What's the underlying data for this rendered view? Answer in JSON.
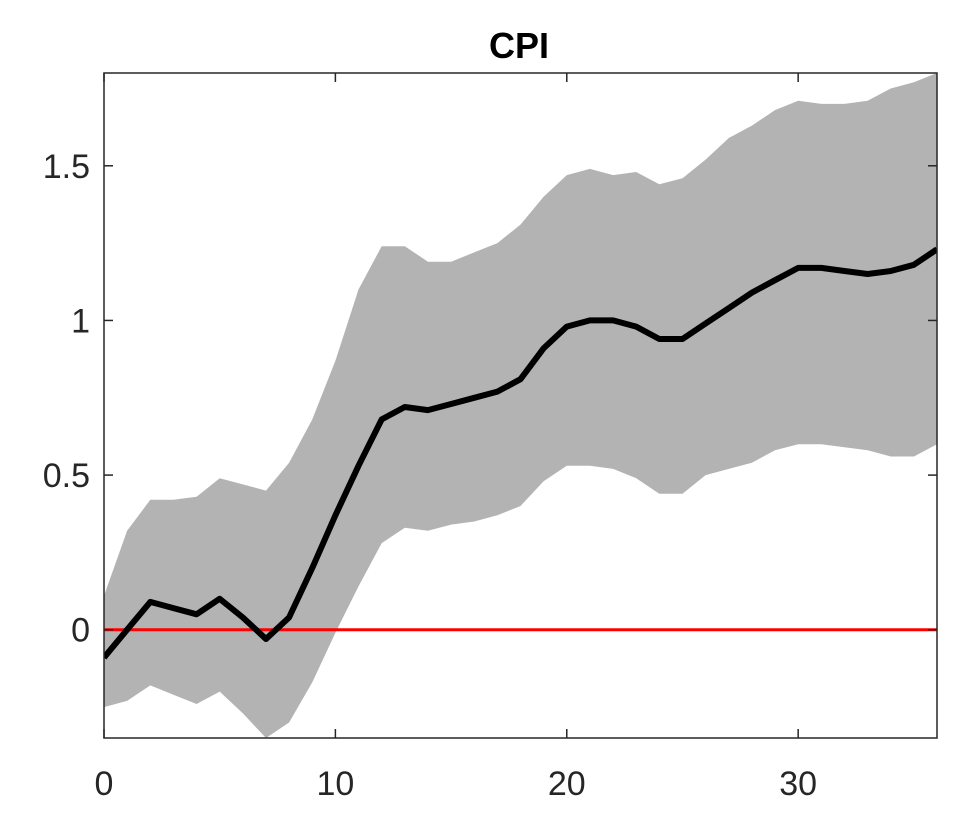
{
  "chart_data": {
    "type": "line",
    "title": "CPI",
    "xlabel": "",
    "ylabel": "",
    "xlim": [
      0,
      36
    ],
    "ylim": [
      -0.35,
      1.8
    ],
    "xticks": [
      0,
      10,
      20,
      30
    ],
    "xtick_labels": [
      "0",
      "10",
      "20",
      "30"
    ],
    "yticks": [
      0,
      0.5,
      1,
      1.5
    ],
    "ytick_labels": [
      "0",
      "0.5",
      "1",
      "1.5"
    ],
    "grid": false,
    "legend": "none",
    "x": [
      0,
      1,
      2,
      3,
      4,
      5,
      6,
      7,
      8,
      9,
      10,
      11,
      12,
      13,
      14,
      15,
      16,
      17,
      18,
      19,
      20,
      21,
      22,
      23,
      24,
      25,
      26,
      27,
      28,
      29,
      30,
      31,
      32,
      33,
      34,
      35,
      36
    ],
    "series": [
      {
        "role": "median",
        "color": "#000000",
        "values": [
          -0.09,
          0.0,
          0.09,
          0.07,
          0.05,
          0.1,
          0.04,
          -0.03,
          0.04,
          0.2,
          0.37,
          0.53,
          0.68,
          0.72,
          0.71,
          0.73,
          0.75,
          0.77,
          0.81,
          0.91,
          0.98,
          1.0,
          1.0,
          0.98,
          0.94,
          0.94,
          0.99,
          1.04,
          1.09,
          1.13,
          1.17,
          1.17,
          1.16,
          1.15,
          1.16,
          1.18,
          1.23
        ]
      },
      {
        "role": "band-upper",
        "color": "#b3b3b3",
        "values": [
          0.11,
          0.32,
          0.42,
          0.42,
          0.43,
          0.49,
          0.47,
          0.45,
          0.54,
          0.68,
          0.87,
          1.1,
          1.24,
          1.24,
          1.19,
          1.19,
          1.22,
          1.25,
          1.31,
          1.4,
          1.47,
          1.49,
          1.47,
          1.48,
          1.44,
          1.46,
          1.52,
          1.59,
          1.63,
          1.68,
          1.71,
          1.7,
          1.7,
          1.71,
          1.75,
          1.77,
          1.8
        ]
      },
      {
        "role": "band-lower",
        "color": "#b3b3b3",
        "values": [
          -0.25,
          -0.23,
          -0.18,
          -0.21,
          -0.24,
          -0.2,
          -0.27,
          -0.35,
          -0.3,
          -0.17,
          -0.01,
          0.14,
          0.28,
          0.33,
          0.32,
          0.34,
          0.35,
          0.37,
          0.4,
          0.48,
          0.53,
          0.53,
          0.52,
          0.49,
          0.44,
          0.44,
          0.5,
          0.52,
          0.54,
          0.58,
          0.6,
          0.6,
          0.59,
          0.58,
          0.56,
          0.56,
          0.6
        ]
      }
    ],
    "reference_line": {
      "y": 0,
      "color": "#ff0000"
    },
    "background": "#ffffff",
    "axis_color": "#262626"
  }
}
